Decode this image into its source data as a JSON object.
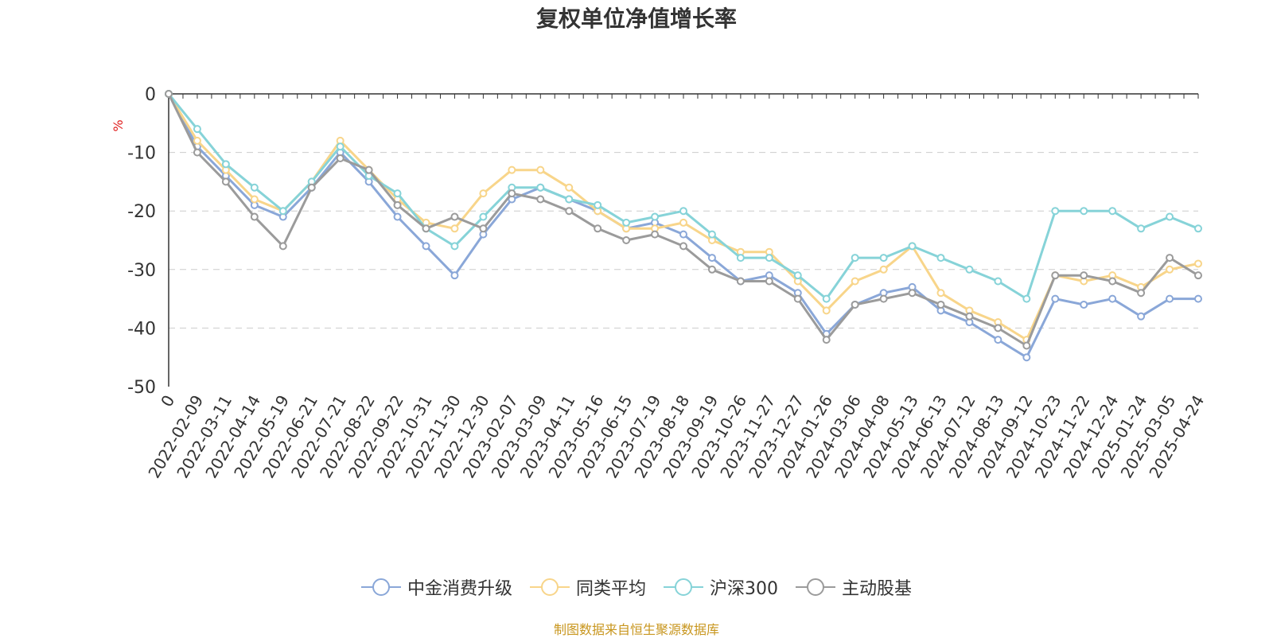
{
  "chart_data": {
    "type": "line",
    "title": "复权单位净值增长率",
    "ylabel": "%",
    "ylim": [
      -50,
      0
    ],
    "yticks": [
      "0",
      "-10",
      "-20",
      "-30",
      "-40",
      "-50"
    ],
    "grid": true,
    "legend_position": "bottom",
    "source": "制图数据来自恒生聚源数据库",
    "x": [
      "0",
      "2022-02-09",
      "2022-03-11",
      "2022-04-14",
      "2022-05-19",
      "2022-06-21",
      "2022-07-21",
      "2022-08-22",
      "2022-09-22",
      "2022-10-31",
      "2022-11-30",
      "2022-12-30",
      "2023-02-07",
      "2023-03-09",
      "2023-04-11",
      "2023-05-16",
      "2023-06-15",
      "2023-07-19",
      "2023-08-18",
      "2023-09-19",
      "2023-10-26",
      "2023-11-27",
      "2023-12-27",
      "2024-01-26",
      "2024-03-06",
      "2024-04-08",
      "2024-05-13",
      "2024-06-13",
      "2024-07-12",
      "2024-08-13",
      "2024-09-12",
      "2024-10-23",
      "2024-11-22",
      "2024-12-24",
      "2025-01-24",
      "2025-03-05",
      "2025-04-24"
    ],
    "series": [
      {
        "name": "中金消费升级",
        "color": "#8aa7d8",
        "values": [
          0,
          -9,
          -14,
          -19,
          -21,
          -16,
          -10,
          -15,
          -21,
          -26,
          -31,
          -24,
          -18,
          -16,
          -18,
          -20,
          -23,
          -22,
          -24,
          -28,
          -32,
          -31,
          -34,
          -41,
          -36,
          -34,
          -33,
          -37,
          -39,
          -42,
          -45,
          -35,
          -36,
          -35,
          -38,
          -35,
          -35
        ]
      },
      {
        "name": "同类平均",
        "color": "#f8d58a",
        "values": [
          0,
          -8,
          -13,
          -18,
          -20,
          -15,
          -8,
          -13,
          -18,
          -22,
          -23,
          -17,
          -13,
          -13,
          -16,
          -20,
          -23,
          -23,
          -22,
          -25,
          -27,
          -27,
          -32,
          -37,
          -32,
          -30,
          -26,
          -34,
          -37,
          -39,
          -42,
          -31,
          -32,
          -31,
          -33,
          -30,
          -29
        ]
      },
      {
        "name": "沪深300",
        "color": "#86d3d8",
        "values": [
          0,
          -6,
          -12,
          -16,
          -20,
          -15,
          -9,
          -14,
          -17,
          -23,
          -26,
          -21,
          -16,
          -16,
          -18,
          -19,
          -22,
          -21,
          -20,
          -24,
          -28,
          -28,
          -31,
          -35,
          -28,
          -28,
          -26,
          -28,
          -30,
          -32,
          -35,
          -20,
          -20,
          -20,
          -23,
          -21,
          -23
        ]
      },
      {
        "name": "主动股基",
        "color": "#9b9b9b",
        "values": [
          0,
          -10,
          -15,
          -21,
          -26,
          -16,
          -11,
          -13,
          -19,
          -23,
          -21,
          -23,
          -17,
          -18,
          -20,
          -23,
          -25,
          -24,
          -26,
          -30,
          -32,
          -32,
          -35,
          -42,
          -36,
          -35,
          -34,
          -36,
          -38,
          -40,
          -43,
          -31,
          -31,
          -32,
          -34,
          -28,
          -31
        ]
      }
    ]
  }
}
